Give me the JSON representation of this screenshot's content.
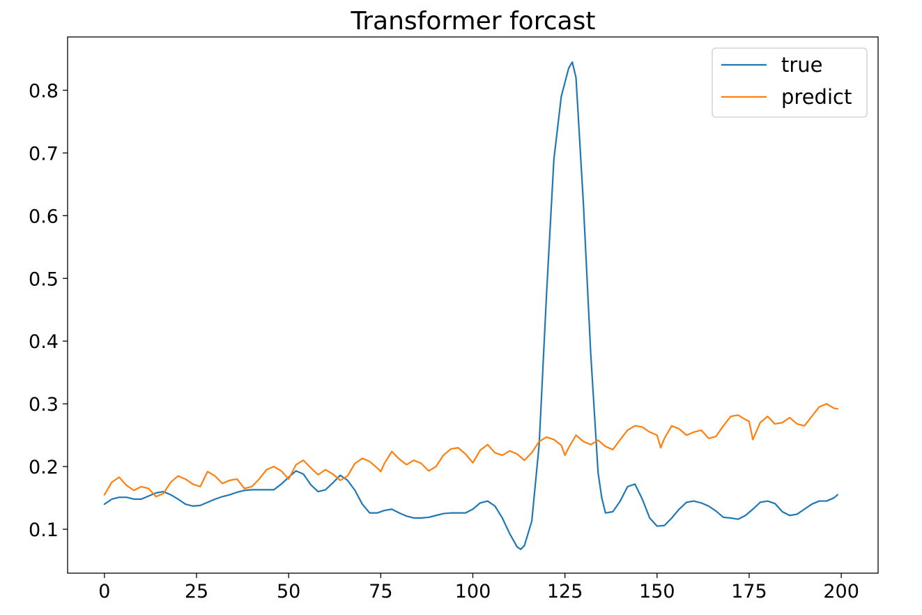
{
  "chart_data": {
    "type": "line",
    "title": "Transformer forcast",
    "xlabel": "",
    "ylabel": "",
    "xlim": [
      -10,
      210
    ],
    "ylim": [
      0.03,
      0.885
    ],
    "xticks": [
      0,
      25,
      50,
      75,
      100,
      125,
      150,
      175,
      200
    ],
    "xtick_labels": [
      "0",
      "25",
      "50",
      "75",
      "100",
      "125",
      "150",
      "175",
      "200"
    ],
    "yticks": [
      0.1,
      0.2,
      0.3,
      0.4,
      0.5,
      0.6,
      0.7,
      0.8
    ],
    "ytick_labels": [
      "0.1",
      "0.2",
      "0.3",
      "0.4",
      "0.5",
      "0.6",
      "0.7",
      "0.8"
    ],
    "grid": false,
    "legend_position": "top-right",
    "series": [
      {
        "name": "true",
        "color": "#1f77b4",
        "x": [
          0,
          2,
          4,
          6,
          8,
          10,
          12,
          14,
          16,
          18,
          20,
          22,
          24,
          26,
          28,
          30,
          32,
          34,
          36,
          38,
          40,
          42,
          44,
          46,
          48,
          50,
          52,
          54,
          56,
          58,
          60,
          62,
          64,
          66,
          68,
          70,
          72,
          74,
          76,
          78,
          80,
          82,
          84,
          86,
          88,
          90,
          92,
          94,
          96,
          98,
          100,
          102,
          104,
          106,
          108,
          110,
          112,
          113,
          114,
          116,
          118,
          120,
          122,
          124,
          126,
          127,
          128,
          130,
          132,
          134,
          135,
          136,
          138,
          140,
          142,
          144,
          146,
          148,
          150,
          152,
          154,
          156,
          158,
          160,
          162,
          164,
          166,
          168,
          170,
          172,
          174,
          176,
          178,
          180,
          182,
          184,
          186,
          188,
          190,
          192,
          194,
          196,
          198,
          199
        ],
        "values": [
          0.14,
          0.148,
          0.151,
          0.151,
          0.148,
          0.148,
          0.153,
          0.158,
          0.16,
          0.155,
          0.148,
          0.14,
          0.137,
          0.138,
          0.143,
          0.148,
          0.152,
          0.155,
          0.159,
          0.162,
          0.163,
          0.163,
          0.163,
          0.163,
          0.172,
          0.183,
          0.193,
          0.188,
          0.171,
          0.16,
          0.163,
          0.174,
          0.186,
          0.178,
          0.162,
          0.14,
          0.126,
          0.126,
          0.13,
          0.132,
          0.126,
          0.121,
          0.118,
          0.118,
          0.119,
          0.122,
          0.125,
          0.126,
          0.126,
          0.126,
          0.132,
          0.142,
          0.145,
          0.137,
          0.118,
          0.093,
          0.072,
          0.068,
          0.074,
          0.113,
          0.235,
          0.475,
          0.69,
          0.79,
          0.835,
          0.845,
          0.82,
          0.62,
          0.38,
          0.19,
          0.15,
          0.126,
          0.128,
          0.145,
          0.168,
          0.172,
          0.148,
          0.118,
          0.105,
          0.106,
          0.118,
          0.132,
          0.143,
          0.145,
          0.142,
          0.137,
          0.129,
          0.119,
          0.118,
          0.116,
          0.122,
          0.132,
          0.143,
          0.145,
          0.141,
          0.128,
          0.122,
          0.124,
          0.132,
          0.14,
          0.145,
          0.145,
          0.15,
          0.155
        ]
      },
      {
        "name": "predict",
        "color": "#ff7f0e",
        "x": [
          0,
          2,
          4,
          6,
          8,
          10,
          12,
          14,
          16,
          18,
          20,
          22,
          24,
          26,
          28,
          30,
          32,
          34,
          36,
          38,
          40,
          42,
          44,
          46,
          48,
          50,
          52,
          54,
          56,
          58,
          60,
          62,
          64,
          66,
          68,
          70,
          72,
          74,
          75,
          76,
          78,
          80,
          82,
          84,
          86,
          88,
          90,
          92,
          94,
          96,
          98,
          100,
          102,
          104,
          106,
          108,
          110,
          112,
          114,
          116,
          118,
          120,
          122,
          124,
          125,
          126,
          128,
          130,
          132,
          134,
          136,
          138,
          140,
          142,
          144,
          146,
          148,
          150,
          151,
          152,
          154,
          156,
          158,
          160,
          162,
          164,
          166,
          168,
          170,
          172,
          174,
          175,
          176,
          178,
          180,
          182,
          184,
          186,
          188,
          190,
          192,
          194,
          196,
          198,
          199
        ],
        "values": [
          0.155,
          0.175,
          0.183,
          0.17,
          0.162,
          0.168,
          0.165,
          0.152,
          0.157,
          0.175,
          0.185,
          0.18,
          0.172,
          0.168,
          0.192,
          0.185,
          0.173,
          0.178,
          0.18,
          0.165,
          0.168,
          0.18,
          0.195,
          0.2,
          0.193,
          0.18,
          0.203,
          0.21,
          0.198,
          0.187,
          0.195,
          0.188,
          0.178,
          0.185,
          0.205,
          0.213,
          0.208,
          0.198,
          0.192,
          0.205,
          0.224,
          0.212,
          0.203,
          0.21,
          0.205,
          0.193,
          0.2,
          0.218,
          0.228,
          0.23,
          0.22,
          0.206,
          0.226,
          0.235,
          0.222,
          0.218,
          0.225,
          0.22,
          0.21,
          0.222,
          0.24,
          0.247,
          0.243,
          0.234,
          0.218,
          0.23,
          0.25,
          0.24,
          0.235,
          0.242,
          0.232,
          0.227,
          0.243,
          0.258,
          0.265,
          0.263,
          0.255,
          0.25,
          0.23,
          0.245,
          0.265,
          0.26,
          0.25,
          0.255,
          0.258,
          0.245,
          0.248,
          0.265,
          0.28,
          0.282,
          0.275,
          0.272,
          0.243,
          0.27,
          0.28,
          0.268,
          0.27,
          0.278,
          0.268,
          0.265,
          0.28,
          0.295,
          0.3,
          0.293,
          0.292
        ]
      }
    ]
  }
}
